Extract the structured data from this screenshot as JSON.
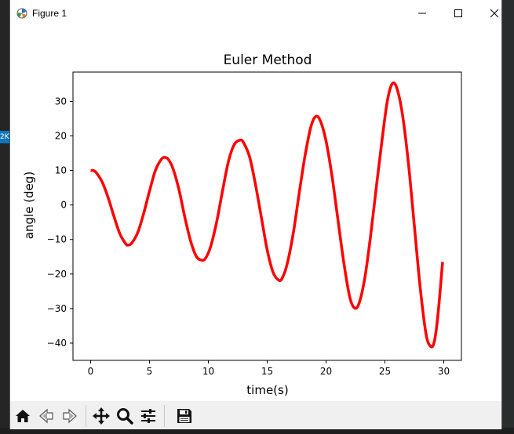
{
  "window": {
    "title": "Figure 1",
    "controls": [
      "minimize",
      "maximize",
      "close"
    ]
  },
  "background": {
    "badge_text": "2K"
  },
  "toolbar": {
    "buttons": [
      {
        "name": "home",
        "icon": "home-icon"
      },
      {
        "name": "back",
        "icon": "arrow-left-icon"
      },
      {
        "name": "forward",
        "icon": "arrow-right-icon"
      },
      {
        "name": "pan",
        "icon": "move-icon"
      },
      {
        "name": "zoom",
        "icon": "magnifier-icon"
      },
      {
        "name": "configure-subplots",
        "icon": "sliders-icon"
      },
      {
        "name": "save",
        "icon": "floppy-disk-icon"
      }
    ]
  },
  "chart_data": {
    "type": "line",
    "title": "Euler Method",
    "xlabel": "time(s)",
    "ylabel": "angle (deg)",
    "xlim": [
      -1.5,
      31.5
    ],
    "ylim": [
      -45,
      38.5
    ],
    "xticks": [
      0,
      5,
      10,
      15,
      20,
      25,
      30
    ],
    "yticks": [
      -40,
      -30,
      -20,
      -10,
      0,
      10,
      20,
      30
    ],
    "grid": false,
    "color": "#ff0000",
    "series": [
      {
        "points": [
          [
            0.0,
            10.0
          ],
          [
            0.3,
            9.9
          ],
          [
            0.6,
            8.8
          ],
          [
            1.0,
            6.5
          ],
          [
            1.5,
            2.0
          ],
          [
            2.0,
            -3.5
          ],
          [
            2.5,
            -8.5
          ],
          [
            3.0,
            -11.3
          ],
          [
            3.2,
            -11.6
          ],
          [
            3.5,
            -11.0
          ],
          [
            4.0,
            -8.0
          ],
          [
            4.5,
            -2.5
          ],
          [
            5.0,
            4.0
          ],
          [
            5.5,
            10.0
          ],
          [
            6.0,
            13.2
          ],
          [
            6.3,
            13.8
          ],
          [
            6.6,
            13.2
          ],
          [
            7.0,
            10.5
          ],
          [
            7.5,
            4.5
          ],
          [
            8.0,
            -3.5
          ],
          [
            8.5,
            -10.5
          ],
          [
            9.0,
            -15.0
          ],
          [
            9.5,
            -16.0
          ],
          [
            9.8,
            -15.2
          ],
          [
            10.2,
            -12.0
          ],
          [
            10.7,
            -5.0
          ],
          [
            11.2,
            4.0
          ],
          [
            11.7,
            12.5
          ],
          [
            12.2,
            17.5
          ],
          [
            12.7,
            18.8
          ],
          [
            13.0,
            18.0
          ],
          [
            13.5,
            14.0
          ],
          [
            14.0,
            6.0
          ],
          [
            14.5,
            -3.5
          ],
          [
            15.0,
            -13.0
          ],
          [
            15.5,
            -19.5
          ],
          [
            16.0,
            -21.8
          ],
          [
            16.3,
            -21.0
          ],
          [
            16.7,
            -17.0
          ],
          [
            17.2,
            -8.5
          ],
          [
            17.7,
            3.0
          ],
          [
            18.2,
            14.0
          ],
          [
            18.7,
            22.5
          ],
          [
            19.1,
            25.6
          ],
          [
            19.5,
            24.5
          ],
          [
            20.0,
            18.5
          ],
          [
            20.5,
            8.5
          ],
          [
            21.0,
            -4.0
          ],
          [
            21.5,
            -16.5
          ],
          [
            22.0,
            -26.5
          ],
          [
            22.4,
            -29.8
          ],
          [
            22.8,
            -28.5
          ],
          [
            23.3,
            -21.0
          ],
          [
            23.8,
            -8.5
          ],
          [
            24.3,
            6.0
          ],
          [
            24.8,
            20.0
          ],
          [
            25.2,
            30.0
          ],
          [
            25.6,
            35.0
          ],
          [
            26.0,
            34.0
          ],
          [
            26.5,
            26.0
          ],
          [
            27.0,
            12.0
          ],
          [
            27.5,
            -6.0
          ],
          [
            28.0,
            -24.0
          ],
          [
            28.5,
            -37.5
          ],
          [
            28.9,
            -41.0
          ],
          [
            29.2,
            -39.5
          ],
          [
            29.5,
            -32.0
          ],
          [
            29.9,
            -16.5
          ]
        ]
      }
    ]
  }
}
